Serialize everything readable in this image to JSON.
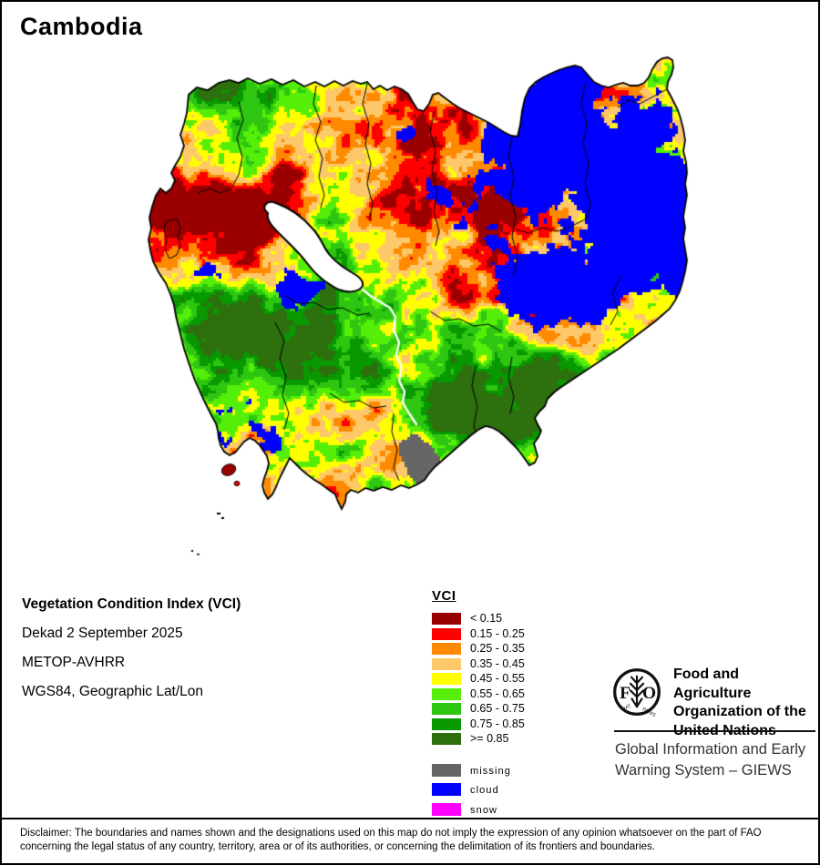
{
  "title": "Cambodia",
  "info": {
    "line1": "Vegetation Condition Index (VCI)",
    "line2": "Dekad 2 September 2025",
    "line3": "METOP-AVHRR",
    "line4": "WGS84, Geographic Lat/Lon"
  },
  "legend": {
    "title": "VCI",
    "classes": [
      {
        "label": "< 0.15",
        "color": "#9A0000"
      },
      {
        "label": "0.15 - 0.25",
        "color": "#FF0000"
      },
      {
        "label": "0.25 - 0.35",
        "color": "#FF8A00"
      },
      {
        "label": "0.35 - 0.45",
        "color": "#FDC86A"
      },
      {
        "label": "0.45 - 0.55",
        "color": "#FFFF00"
      },
      {
        "label": "0.55 - 0.65",
        "color": "#55EE08"
      },
      {
        "label": "0.65 - 0.75",
        "color": "#2EC611"
      },
      {
        "label": "0.75 - 0.85",
        "color": "#089900"
      },
      {
        "label": ">= 0.85",
        "color": "#2E6F0E"
      }
    ],
    "extras": [
      {
        "label": "missing",
        "color": "#666666"
      },
      {
        "label": "cloud",
        "color": "#0000FF"
      },
      {
        "label": "snow",
        "color": "#FF00FF"
      }
    ]
  },
  "map": {
    "country": "Cambodia",
    "lake_color": "#FFFFFF",
    "outline_color": "#000000",
    "background": "#FFFFFF"
  },
  "branding": {
    "logo_acronym": "FAO",
    "logo_motto_left": "FIAT",
    "logo_motto_right": "PANIS",
    "org_lines": [
      "Food and Agriculture",
      "Organization of the",
      "United Nations"
    ],
    "giews_lines": [
      "Global Information and Early",
      "Warning System – GIEWS"
    ]
  },
  "disclaimer": "Disclaimer: The boundaries and names shown and the designations used on this map do not imply the expression of any opinion whatsoever on the part of FAO concerning the legal status of any country, territory, area or of its authorities, or concerning the delimitation of its frontiers and boundaries."
}
